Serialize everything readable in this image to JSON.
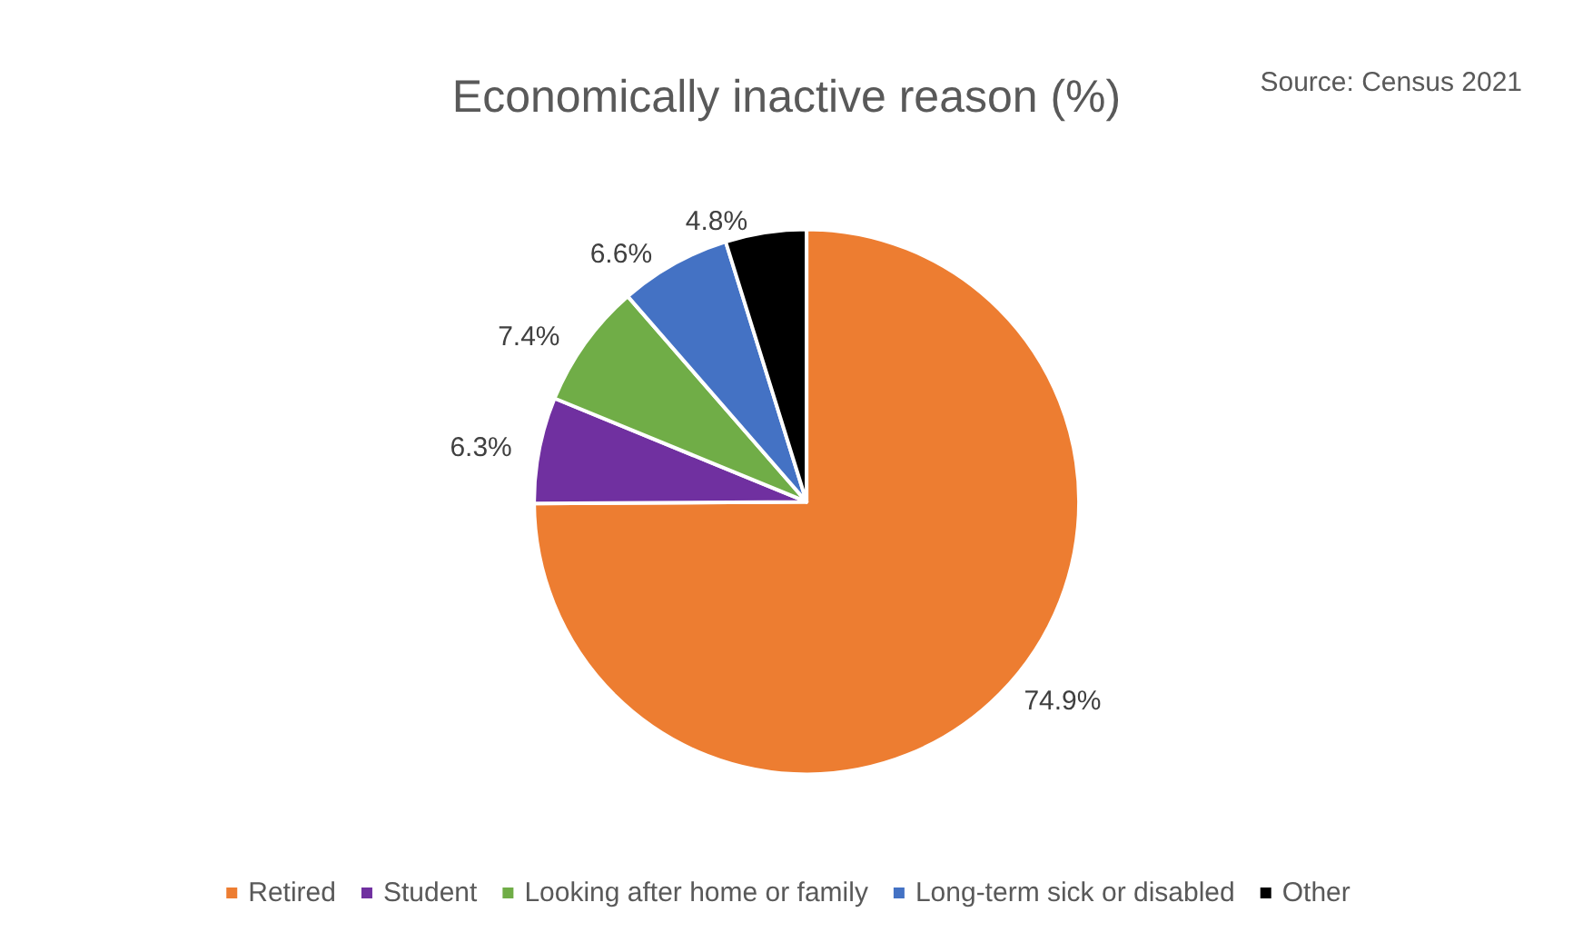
{
  "chart_data": {
    "type": "pie",
    "title": "Economically inactive reason (%)",
    "annotations": [
      "Source: Census 2021"
    ],
    "categories": [
      "Retired",
      "Student",
      "Looking after home or family",
      "Long-term sick or disabled",
      "Other"
    ],
    "values": [
      74.9,
      6.3,
      7.4,
      6.6,
      4.8
    ],
    "colors": [
      "#ed7d31",
      "#7030a0",
      "#70ad47",
      "#4472c4",
      "#000000"
    ],
    "value_labels": [
      "74.9%",
      "6.3%",
      "7.4%",
      "6.6%",
      "4.8%"
    ],
    "legend": "bottom"
  }
}
